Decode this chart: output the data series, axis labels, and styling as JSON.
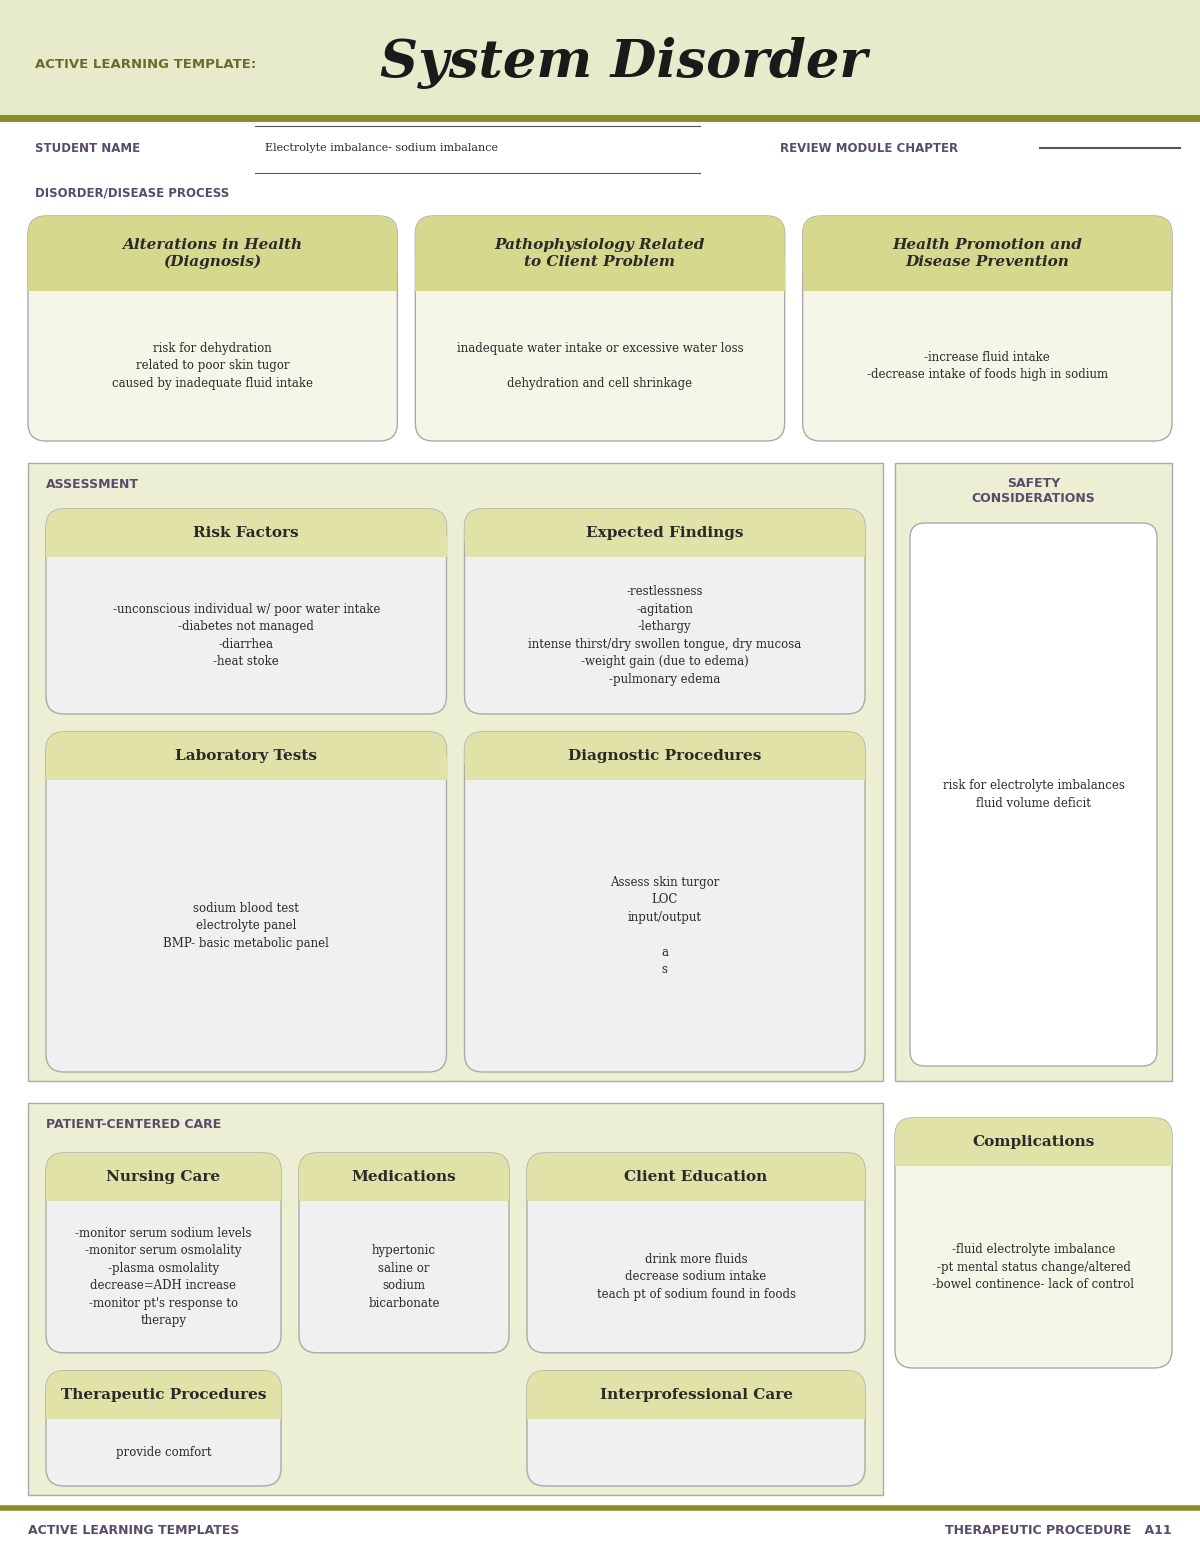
{
  "white": "#ffffff",
  "header_bg": "#e8eacc",
  "olive_line": "#8b8b2e",
  "light_yellow_bg": "#edefd4",
  "card_title_bg": "#d8daa0",
  "card_body_bg": "#f0f0e8",
  "gray_card_bg": "#f0f0f0",
  "gray_card_border": "#aaaaaa",
  "purple_text": "#5a4a6b",
  "dark_text": "#2a2a2a",
  "title_small": "ACTIVE LEARNING TEMPLATE:",
  "title_big": "System Disorder",
  "student_label1": "STUDENT NAME",
  "student_label2": "DISORDER/DISEASE PROCESS",
  "disorder_text": "Electrolyte imbalance- sodium imbalance",
  "review_label": "REVIEW MODULE CHAPTER",
  "section1_title": "Alterations in Health\n(Diagnosis)",
  "section1_body": "risk for dehydration\nrelated to poor skin tugor\ncaused by inadequate fluid intake",
  "section2_title": "Pathophysiology Related\nto Client Problem",
  "section2_body": "inadequate water intake or excessive water loss\n\ndehydration and cell shrinkage",
  "section3_title": "Health Promotion and\nDisease Prevention",
  "section3_body": "-increase fluid intake\n-decrease intake of foods high in sodium",
  "assessment_label": "ASSESSMENT",
  "safety_label": "SAFETY\nCONSIDERATIONS",
  "safety_body": "risk for electrolyte imbalances\nfluid volume deficit",
  "risk_title": "Risk Factors",
  "risk_body": "-unconscious individual w/ poor water intake\n-diabetes not managed\n-diarrhea\n-heat stoke",
  "expected_title": "Expected Findings",
  "expected_body": "-restlessness\n-agitation\n-lethargy\nintense thirst/dry swollen tongue, dry mucosa\n-weight gain (due to edema)\n-pulmonary edema",
  "lab_title": "Laboratory Tests",
  "lab_body": "sodium blood test\nelectrolyte panel\nBMP- basic metabolic panel",
  "diag_title": "Diagnostic Procedures",
  "diag_body": "Assess skin turgor\nLOC\ninput/output\n\na\ns",
  "patient_label": "PATIENT-CENTERED CARE",
  "nursing_title": "Nursing Care",
  "nursing_body": "-monitor serum sodium levels\n-monitor serum osmolality\n-plasma osmolality\ndecrease=ADH increase\n-monitor pt's response to\ntherapy",
  "meds_title": "Medications",
  "meds_body": "hypertonic\nsaline or\nsodium\nbicarbonate",
  "client_title": "Client Education",
  "client_body": "drink more fluids\ndecrease sodium intake\nteach pt of sodium found in foods",
  "complications_title": "Complications",
  "complications_body": "-fluid electrolyte imbalance\n-pt mental status change/altered\n-bowel continence- lack of control",
  "therapeutic_title": "Therapeutic Procedures",
  "therapeutic_body": "provide comfort",
  "interpro_title": "Interprofessional Care",
  "interpro_body": "",
  "footer_left": "ACTIVE LEARNING TEMPLATES",
  "footer_right": "THERAPEUTIC PROCEDURE   A11"
}
